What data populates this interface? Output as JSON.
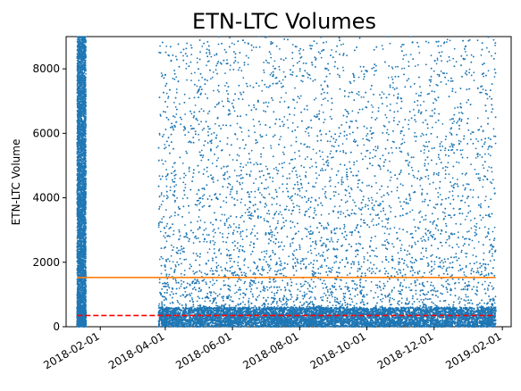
{
  "chart_data": {
    "type": "scatter",
    "title": "ETN-LTC Volumes",
    "xlabel": "",
    "ylabel": "ETN-LTC Volume",
    "x_axis_type": "date",
    "xlim": [
      "2018-01-01",
      "2019-02-09"
    ],
    "ylim": [
      0,
      9000
    ],
    "x_ticks": [
      "2018-02-01",
      "2018-04-01",
      "2018-06-01",
      "2018-08-01",
      "2018-10-01",
      "2018-12-01",
      "2019-02-01"
    ],
    "y_ticks": [
      0,
      2000,
      4000,
      6000,
      8000
    ],
    "grid": false,
    "legend": "none",
    "series": [
      {
        "kind": "scatter",
        "color": "#1f77b4",
        "segments": [
          {
            "start": "2018-01-11",
            "end": "2018-01-19",
            "typical_range": [
              0,
              9000
            ]
          },
          {
            "start": "2018-03-26",
            "end": "2019-01-26",
            "typical_range": [
              0,
              9000
            ]
          }
        ]
      },
      {
        "kind": "hline",
        "style": "solid",
        "color": "#ff7f0e",
        "y": 1530,
        "x_range": [
          "2018-01-11",
          "2019-01-26"
        ]
      },
      {
        "kind": "hline",
        "style": "dashed",
        "color": "#ff0000",
        "y": 350,
        "x_range": [
          "2018-01-11",
          "2019-01-26"
        ]
      }
    ]
  }
}
